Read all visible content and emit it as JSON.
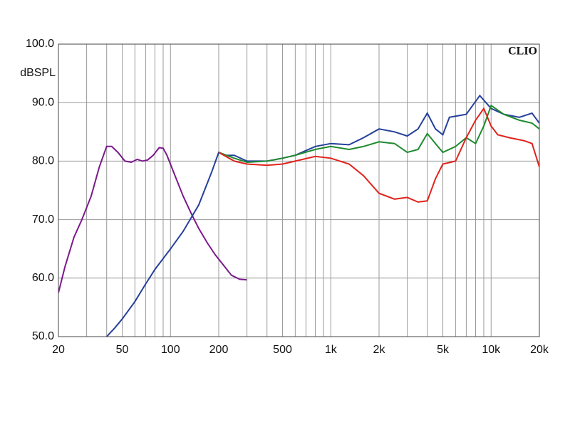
{
  "chart_data": {
    "type": "line",
    "y_label": "dBSPL",
    "annotation": "CLIO",
    "log_x": true,
    "grid": true,
    "xlim": [
      20,
      20000
    ],
    "ylim": [
      50,
      100
    ],
    "xticks": [
      20,
      50,
      100,
      200,
      500,
      {
        "value": 1000,
        "label": "1k"
      },
      {
        "value": 2000,
        "label": "2k"
      },
      {
        "value": 5000,
        "label": "5k"
      },
      {
        "value": 10000,
        "label": "10k"
      },
      {
        "value": 20000,
        "label": "20k"
      }
    ],
    "x_minor_grid": [
      30,
      40,
      60,
      70,
      80,
      90,
      300,
      400,
      600,
      700,
      800,
      900,
      3000,
      4000,
      6000,
      7000,
      8000,
      9000
    ],
    "yticks": [
      {
        "value": 50,
        "label": "50.0"
      },
      {
        "value": 60,
        "label": "60.0"
      },
      {
        "value": 70,
        "label": "70.0"
      },
      {
        "value": 80,
        "label": "80.0"
      },
      {
        "value": 90,
        "label": "90.0"
      },
      {
        "value": 100,
        "label": "100.0"
      }
    ],
    "series": [
      {
        "color": "#7b1a8c",
        "x": [
          20,
          22,
          25,
          28,
          32,
          36,
          40,
          43,
          47,
          52,
          57,
          62,
          67,
          72,
          78,
          85,
          90,
          95,
          105,
          120,
          135,
          150,
          170,
          190,
          210,
          240,
          270,
          300
        ],
        "values": [
          57.5,
          62,
          67,
          70,
          74,
          79,
          82.5,
          82.5,
          81.5,
          80,
          79.8,
          80.3,
          80,
          80.2,
          81,
          82.3,
          82.2,
          81,
          78,
          74,
          71,
          68.5,
          66,
          64,
          62.5,
          60.5,
          59.8,
          59.7
        ]
      },
      {
        "color": "#25409a",
        "x": [
          40,
          45,
          50,
          60,
          70,
          80,
          100,
          120,
          150,
          180,
          200,
          220,
          250,
          300,
          400,
          500,
          600,
          800,
          1000,
          1300,
          1600,
          2000,
          2500,
          3000,
          3500,
          4000,
          4500,
          5000,
          5500,
          7000,
          8500,
          10000,
          12000,
          15000,
          18000,
          20000
        ],
        "values": [
          50,
          51.5,
          53,
          56,
          59,
          61.5,
          65,
          68,
          72.5,
          78,
          81.5,
          81,
          81,
          80,
          80,
          80.5,
          81,
          82.5,
          83,
          82.8,
          84,
          85.5,
          85,
          84.3,
          85.5,
          88.2,
          85.5,
          84.5,
          87.5,
          88,
          91.2,
          89,
          88,
          87.5,
          88.2,
          86.5
        ]
      },
      {
        "color": "#1f8a2e",
        "x": [
          200,
          250,
          300,
          400,
          500,
          600,
          800,
          1000,
          1300,
          1600,
          2000,
          2500,
          3000,
          3500,
          4000,
          4500,
          5000,
          6000,
          7000,
          8000,
          9000,
          10000,
          12000,
          15000,
          18000,
          20000
        ],
        "values": [
          81.5,
          80.5,
          79.8,
          80,
          80.5,
          81,
          82,
          82.5,
          82,
          82.5,
          83.3,
          83,
          81.5,
          82,
          84.7,
          83,
          81.5,
          82.5,
          84,
          83,
          86,
          89.5,
          88,
          87,
          86.5,
          85.5
        ]
      },
      {
        "color": "#e0241c",
        "x": [
          200,
          250,
          300,
          400,
          500,
          600,
          800,
          1000,
          1300,
          1600,
          2000,
          2500,
          3000,
          3500,
          4000,
          4500,
          5000,
          6000,
          7000,
          8000,
          9000,
          10000,
          11000,
          13000,
          16000,
          18000,
          20000
        ],
        "values": [
          81.5,
          80,
          79.5,
          79.3,
          79.5,
          80,
          80.8,
          80.5,
          79.5,
          77.5,
          74.5,
          73.5,
          73.8,
          73,
          73.2,
          77,
          79.5,
          80,
          84,
          87,
          89,
          86,
          84.5,
          84,
          83.5,
          83,
          79
        ]
      }
    ]
  }
}
